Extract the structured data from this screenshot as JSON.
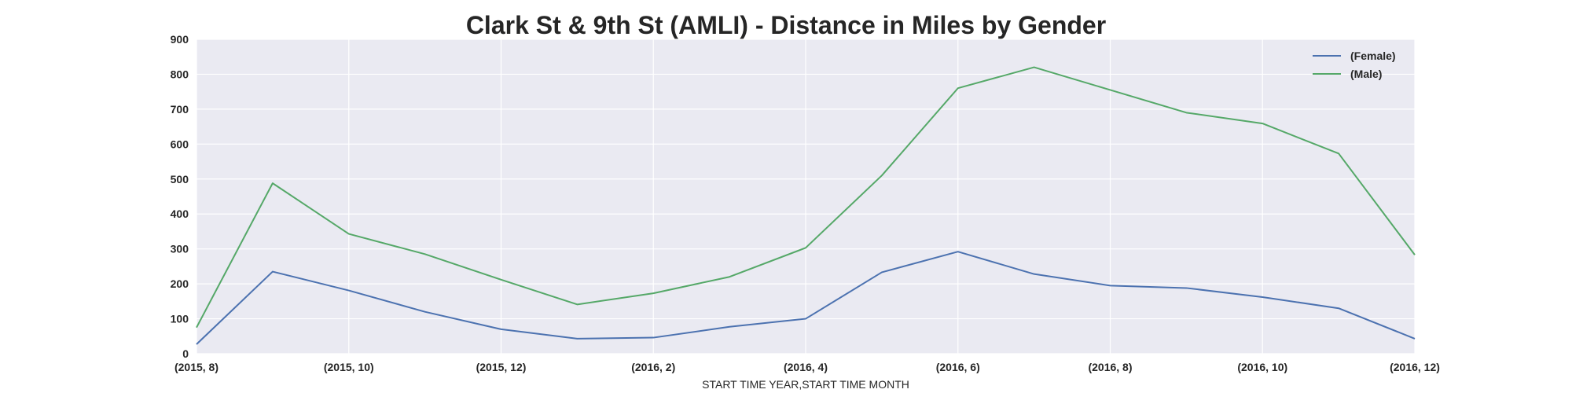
{
  "chart_data": {
    "type": "line",
    "title": "Clark St & 9th St (AMLI) - Distance in Miles by Gender",
    "xlabel": "START TIME YEAR,START TIME MONTH",
    "ylabel": "",
    "ylim": [
      0,
      900
    ],
    "yticks": [
      "0",
      "100",
      "200",
      "300",
      "400",
      "500",
      "600",
      "700",
      "800",
      "900"
    ],
    "x": [
      "(2015, 8)",
      "(2015, 9)",
      "(2015, 10)",
      "(2015, 11)",
      "(2015, 12)",
      "(2016, 1)",
      "(2016, 2)",
      "(2016, 3)",
      "(2016, 4)",
      "(2016, 5)",
      "(2016, 6)",
      "(2016, 7)",
      "(2016, 8)",
      "(2016, 9)",
      "(2016, 10)",
      "(2016, 11)",
      "(2016, 12)"
    ],
    "xticks": [
      "(2015, 8)",
      "(2015, 10)",
      "(2015, 12)",
      "(2016, 2)",
      "(2016, 4)",
      "(2016, 6)",
      "(2016, 8)",
      "(2016, 10)",
      "(2016, 12)"
    ],
    "grid": true,
    "legend_position": "top-right",
    "series": [
      {
        "name": "(Female)",
        "color": "#4c72b0",
        "values": [
          27,
          235,
          181,
          120,
          70,
          43,
          46,
          77,
          100,
          233,
          292,
          228,
          195,
          188,
          162,
          130,
          43
        ]
      },
      {
        "name": "(Male)",
        "color": "#55a868",
        "values": [
          75,
          488,
          343,
          285,
          212,
          141,
          173,
          220,
          303,
          510,
          760,
          820,
          755,
          690,
          659,
          573,
          283
        ]
      }
    ]
  }
}
